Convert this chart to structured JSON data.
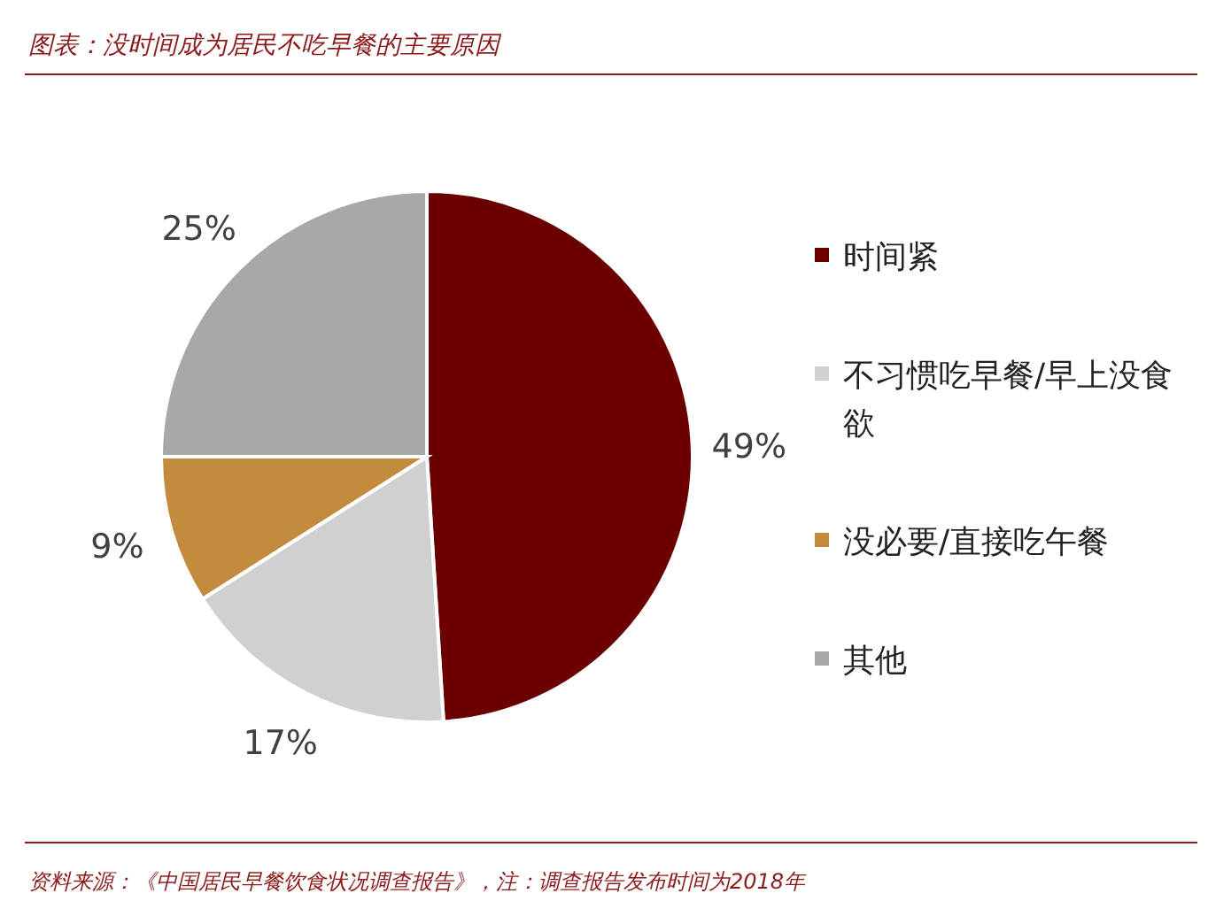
{
  "chart_data": {
    "type": "pie",
    "title": "图表：没时间成为居民不吃早餐的主要原因",
    "categories": [
      "时间紧",
      "不习惯吃早餐/早上没食欲",
      "没必要/直接吃午餐",
      "其他"
    ],
    "values": [
      49,
      17,
      9,
      25
    ],
    "colors": [
      "#6b0000",
      "#d0d0d0",
      "#c48a3e",
      "#a8a8a8"
    ],
    "value_labels": [
      "49%",
      "17%",
      "9%",
      "25%"
    ],
    "legend": "right",
    "annotations": [
      "资料来源：《中国居民早餐饮食状况调查报告》，注：调查报告发布时间为2018年"
    ]
  }
}
